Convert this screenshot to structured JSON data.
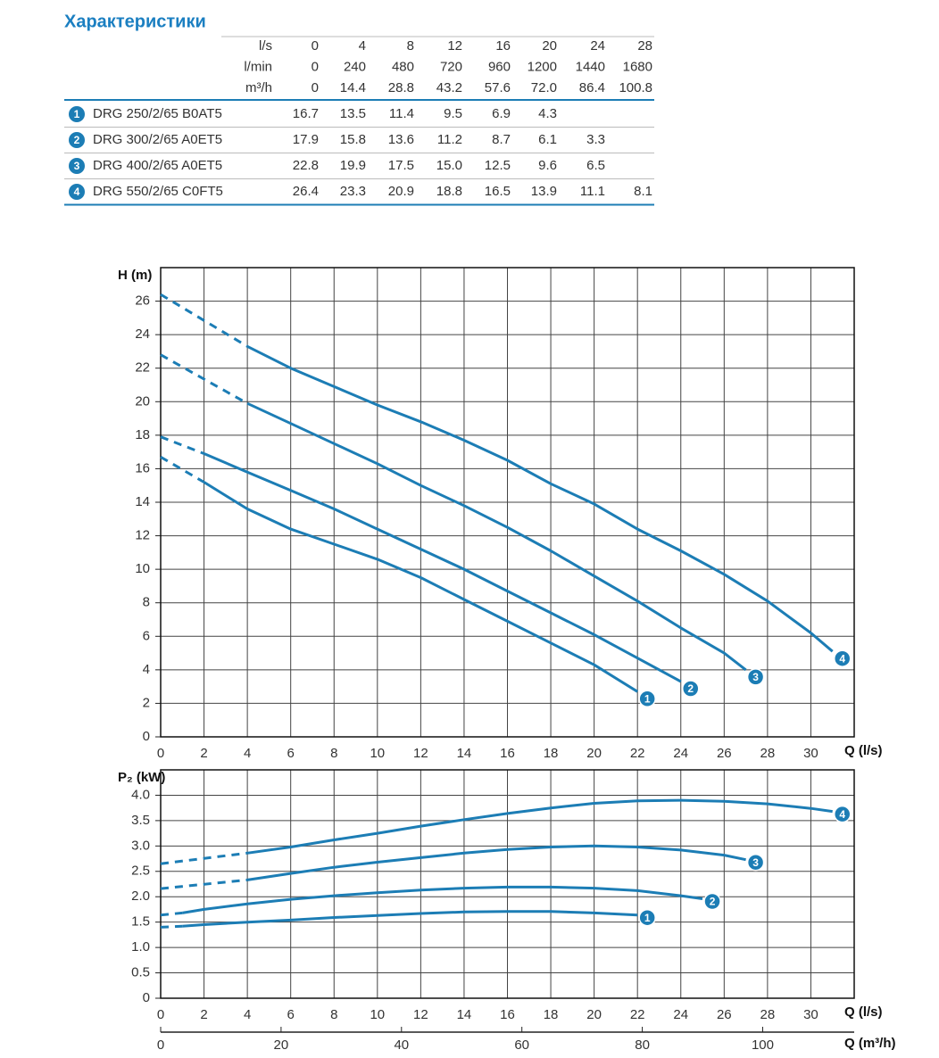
{
  "title": "Характеристики",
  "table": {
    "header": [
      [
        "l/s",
        "0",
        "4",
        "8",
        "12",
        "16",
        "20",
        "24",
        "28"
      ],
      [
        "l/min",
        "0",
        "240",
        "480",
        "720",
        "960",
        "1200",
        "1440",
        "1680"
      ],
      [
        "m³/h",
        "0",
        "14.4",
        "28.8",
        "43.2",
        "57.6",
        "72.0",
        "86.4",
        "100.8"
      ]
    ],
    "rows": [
      {
        "marker": "1",
        "model": "DRG 250/2/65 B0AT5",
        "cells": [
          "16.7",
          "13.5",
          "11.4",
          "9.5",
          "6.9",
          "4.3",
          null,
          null
        ]
      },
      {
        "marker": "2",
        "model": "DRG 300/2/65 A0ET5",
        "cells": [
          "17.9",
          "15.8",
          "13.6",
          "11.2",
          "8.7",
          "6.1",
          "3.3",
          null
        ]
      },
      {
        "marker": "3",
        "model": "DRG 400/2/65 A0ET5",
        "cells": [
          "22.8",
          "19.9",
          "17.5",
          "15.0",
          "12.5",
          "9.6",
          "6.5",
          null
        ]
      },
      {
        "marker": "4",
        "model": "DRG 550/2/65 C0FT5",
        "cells": [
          "26.4",
          "23.3",
          "20.9",
          "18.8",
          "16.5",
          "13.9",
          "11.1",
          "8.1"
        ]
      }
    ]
  },
  "chart_data": [
    {
      "type": "line",
      "y_label": "H (m)",
      "x_label": "Q (l/s)",
      "grid": true,
      "xlim": [
        0,
        32
      ],
      "xticks": [
        0,
        2,
        4,
        6,
        8,
        10,
        12,
        14,
        16,
        18,
        20,
        22,
        24,
        26,
        28,
        30
      ],
      "ylim": [
        0,
        28
      ],
      "yticks": [
        0,
        2,
        4,
        6,
        8,
        10,
        12,
        14,
        16,
        18,
        20,
        22,
        24,
        26
      ],
      "series": [
        {
          "name": "1",
          "color": "#1c7db5",
          "x": [
            0,
            2,
            4,
            6,
            8,
            10,
            12,
            14,
            16,
            18,
            20,
            22
          ],
          "values": [
            16.7,
            15.2,
            13.6,
            12.4,
            11.5,
            10.6,
            9.5,
            8.2,
            6.9,
            5.6,
            4.3,
            2.7
          ]
        },
        {
          "name": "2",
          "color": "#1c7db5",
          "x": [
            0,
            2,
            4,
            6,
            8,
            10,
            12,
            14,
            16,
            18,
            20,
            22,
            24
          ],
          "values": [
            17.9,
            16.9,
            15.8,
            14.7,
            13.6,
            12.4,
            11.2,
            10.0,
            8.7,
            7.4,
            6.1,
            4.7,
            3.3
          ]
        },
        {
          "name": "3",
          "color": "#1c7db5",
          "x": [
            0,
            4,
            6,
            8,
            10,
            12,
            14,
            16,
            18,
            20,
            22,
            24,
            26,
            27
          ],
          "values": [
            22.8,
            19.9,
            18.7,
            17.5,
            16.3,
            15.0,
            13.8,
            12.5,
            11.1,
            9.6,
            8.1,
            6.5,
            5.0,
            4.0
          ]
        },
        {
          "name": "4",
          "color": "#1c7db5",
          "x": [
            0,
            4,
            6,
            8,
            10,
            12,
            14,
            16,
            18,
            20,
            22,
            24,
            26,
            28,
            30,
            31
          ],
          "values": [
            26.4,
            23.3,
            22.0,
            20.9,
            19.8,
            18.8,
            17.7,
            16.5,
            15.1,
            13.9,
            12.4,
            11.1,
            9.7,
            8.1,
            6.2,
            5.1
          ]
        }
      ]
    },
    {
      "type": "line",
      "y_label": "P₂ (kW)",
      "x_label": "Q (l/s)",
      "x2_label": "Q (m³/h)",
      "grid": true,
      "xlim": [
        0,
        32
      ],
      "xticks": [
        0,
        2,
        4,
        6,
        8,
        10,
        12,
        14,
        16,
        18,
        20,
        22,
        24,
        26,
        28,
        30
      ],
      "x2lim": [
        0,
        115.2
      ],
      "x2ticks": [
        0,
        20,
        40,
        60,
        80,
        100
      ],
      "ylim": [
        0,
        4.5
      ],
      "yticks": [
        0,
        0.5,
        {
          "value": 1,
          "label": "1.0"
        },
        1.5,
        {
          "value": 2,
          "label": "2.0"
        },
        2.5,
        {
          "value": 3,
          "label": "3.0"
        },
        3.5,
        {
          "value": 4,
          "label": "4.0"
        }
      ],
      "series": [
        {
          "name": "1",
          "color": "#1c7db5",
          "x": [
            0,
            1,
            2,
            4,
            6,
            8,
            10,
            12,
            14,
            16,
            18,
            20,
            22
          ],
          "values": [
            1.4,
            1.42,
            1.45,
            1.5,
            1.54,
            1.59,
            1.63,
            1.67,
            1.7,
            1.71,
            1.71,
            1.68,
            1.64
          ]
        },
        {
          "name": "2",
          "color": "#1c7db5",
          "x": [
            0,
            1,
            2,
            4,
            6,
            8,
            10,
            12,
            14,
            16,
            18,
            20,
            22,
            24,
            25
          ],
          "values": [
            1.64,
            1.68,
            1.75,
            1.86,
            1.95,
            2.02,
            2.08,
            2.13,
            2.17,
            2.19,
            2.19,
            2.17,
            2.12,
            2.02,
            1.96
          ]
        },
        {
          "name": "3",
          "color": "#1c7db5",
          "x": [
            0,
            4,
            6,
            8,
            10,
            12,
            14,
            16,
            18,
            20,
            22,
            24,
            26,
            27
          ],
          "values": [
            2.16,
            2.33,
            2.46,
            2.58,
            2.68,
            2.77,
            2.86,
            2.93,
            2.98,
            3.0,
            2.98,
            2.92,
            2.82,
            2.73
          ]
        },
        {
          "name": "4",
          "color": "#1c7db5",
          "x": [
            0,
            4,
            6,
            8,
            10,
            12,
            14,
            16,
            18,
            20,
            22,
            24,
            26,
            28,
            30,
            31
          ],
          "values": [
            2.65,
            2.86,
            2.98,
            3.12,
            3.25,
            3.39,
            3.52,
            3.64,
            3.75,
            3.84,
            3.89,
            3.9,
            3.88,
            3.83,
            3.74,
            3.68
          ]
        }
      ]
    }
  ]
}
